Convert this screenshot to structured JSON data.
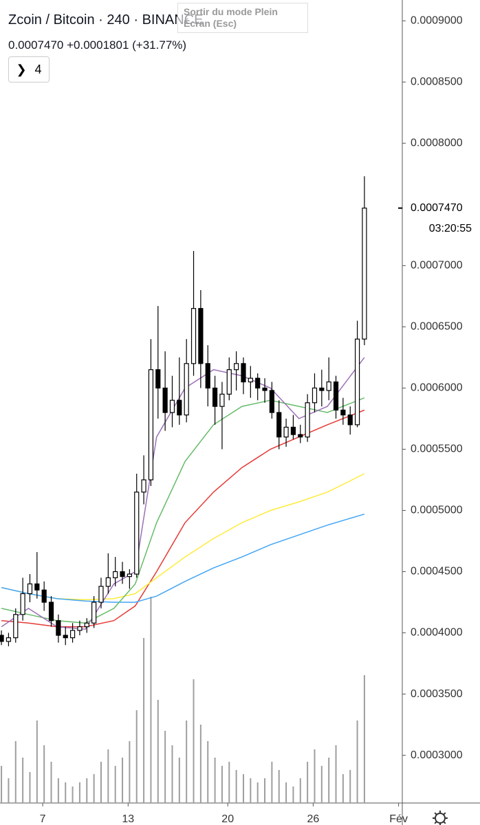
{
  "header": {
    "symbol": "Zcoin / Bitcoin",
    "separator": "·",
    "interval": "240",
    "exchange": "BINANCE",
    "last": "0.0007470",
    "change": "+0.0001801",
    "change_pct": "(+31.77%)",
    "indicators_count": "4",
    "tooltip": "Sortir du mode Plein Écran (Esc)"
  },
  "chart_data": {
    "type": "candlestick",
    "x": [
      4.1,
      4.6,
      5.1,
      5.6,
      6.1,
      6.6,
      7.1,
      7.6,
      8.1,
      8.6,
      9.1,
      9.6,
      10.1,
      10.6,
      11.1,
      11.6,
      12.1,
      12.6,
      13.1,
      13.6,
      14.1,
      14.6,
      15.1,
      15.6,
      16.1,
      16.6,
      17.1,
      17.6,
      18.1,
      18.6,
      19.1,
      19.6,
      20.1,
      20.6,
      21.1,
      21.6,
      22.1,
      22.6,
      23.1,
      23.6,
      24.1,
      24.6,
      25.1,
      25.6,
      26.1,
      26.6,
      27.1,
      27.6,
      28.1,
      28.6,
      29.1,
      29.6
    ],
    "open": [
      0.000398,
      0.000393,
      0.000396,
      0.000415,
      0.000432,
      0.00044,
      0.000435,
      0.000425,
      0.00041,
      0.000398,
      0.000396,
      0.000402,
      0.000405,
      0.000408,
      0.000425,
      0.000438,
      0.000445,
      0.00045,
      0.000446,
      0.000448,
      0.000515,
      0.000525,
      0.000615,
      0.0006,
      0.00058,
      0.00059,
      0.000578,
      0.00062,
      0.000665,
      0.00062,
      0.0006,
      0.000585,
      0.000595,
      0.000615,
      0.00062,
      0.000605,
      0.000608,
      0.0006,
      0.000598,
      0.00058,
      0.00056,
      0.000568,
      0.000562,
      0.00056,
      0.000588,
      0.0006,
      0.000598,
      0.000605,
      0.000582,
      0.000578,
      0.00057,
      0.00064
    ],
    "high": [
      0.000402,
      0.0004,
      0.00042,
      0.000445,
      0.000448,
      0.000466,
      0.000442,
      0.00043,
      0.000415,
      0.000405,
      0.000408,
      0.00041,
      0.000412,
      0.00043,
      0.000445,
      0.000465,
      0.000462,
      0.000458,
      0.000452,
      0.00053,
      0.000545,
      0.00064,
      0.000667,
      0.00063,
      0.00061,
      0.000625,
      0.00064,
      0.000712,
      0.00068,
      0.000635,
      0.00061,
      0.000605,
      0.000625,
      0.00063,
      0.000625,
      0.000618,
      0.000612,
      0.000608,
      0.000605,
      0.00059,
      0.000575,
      0.000578,
      0.00057,
      0.000595,
      0.000612,
      0.000615,
      0.000625,
      0.00061,
      0.000592,
      0.000585,
      0.000655,
      0.000773
    ],
    "low": [
      0.00039,
      0.000389,
      0.000392,
      0.00041,
      0.000425,
      0.000428,
      0.000418,
      0.000405,
      0.000392,
      0.00039,
      0.000392,
      0.000398,
      0.0004,
      0.000404,
      0.00042,
      0.000432,
      0.000438,
      0.00044,
      0.000436,
      0.000445,
      0.000505,
      0.00052,
      0.000575,
      0.000565,
      0.000568,
      0.00057,
      0.000572,
      0.00061,
      0.0006,
      0.000585,
      0.00057,
      0.00055,
      0.00059,
      0.000598,
      0.000595,
      0.000592,
      0.00059,
      0.000588,
      0.000575,
      0.00055,
      0.000552,
      0.000558,
      0.000555,
      0.000556,
      0.00058,
      0.000585,
      0.00059,
      0.000575,
      0.00057,
      0.000562,
      0.000568,
      0.000635
    ],
    "close": [
      0.000393,
      0.000396,
      0.000415,
      0.000432,
      0.00044,
      0.000435,
      0.000425,
      0.00041,
      0.000398,
      0.000396,
      0.000402,
      0.000405,
      0.000408,
      0.000425,
      0.000438,
      0.000445,
      0.00045,
      0.000446,
      0.000448,
      0.000515,
      0.000525,
      0.000615,
      0.0006,
      0.00058,
      0.00059,
      0.000578,
      0.00062,
      0.000665,
      0.00062,
      0.0006,
      0.000585,
      0.000595,
      0.000615,
      0.00062,
      0.000605,
      0.000608,
      0.0006,
      0.000598,
      0.00058,
      0.00056,
      0.000568,
      0.000562,
      0.00056,
      0.000588,
      0.0006,
      0.000598,
      0.000605,
      0.000582,
      0.000578,
      0.00057,
      0.00064,
      0.000747
    ],
    "volume": {
      "color": "#9e9e9e",
      "ylim": [
        0,
        100
      ],
      "values": [
        18,
        12,
        30,
        22,
        15,
        40,
        28,
        20,
        12,
        10,
        8,
        10,
        12,
        14,
        20,
        26,
        18,
        22,
        30,
        45,
        80,
        100,
        50,
        35,
        28,
        22,
        40,
        60,
        38,
        30,
        22,
        18,
        20,
        16,
        14,
        12,
        10,
        12,
        20,
        16,
        10,
        8,
        12,
        20,
        26,
        18,
        22,
        28,
        14,
        16,
        40,
        62
      ]
    },
    "ma_x": [
      4.1,
      6,
      8,
      10,
      12,
      13.5,
      15,
      17,
      19,
      21,
      23,
      25,
      27,
      29.6
    ],
    "moving_averages": [
      {
        "color": "#e53935",
        "values": [
          0.00041,
          0.000408,
          0.000405,
          0.000405,
          0.00041,
          0.000422,
          0.00045,
          0.00049,
          0.000515,
          0.000535,
          0.00055,
          0.00056,
          0.00057,
          0.000582
        ]
      },
      {
        "color": "#ffeb3b",
        "values": [
          0.000437,
          0.000432,
          0.000428,
          0.000427,
          0.000428,
          0.000432,
          0.000445,
          0.000462,
          0.000477,
          0.00049,
          0.0005,
          0.000507,
          0.000515,
          0.00053
        ]
      },
      {
        "color": "#42a5f5",
        "values": [
          0.000437,
          0.000432,
          0.000428,
          0.000426,
          0.000425,
          0.000425,
          0.00043,
          0.000442,
          0.000453,
          0.000462,
          0.000472,
          0.00048,
          0.000488,
          0.000497
        ]
      },
      {
        "color": "#66bb6a",
        "values": [
          0.00042,
          0.000415,
          0.00041,
          0.000408,
          0.00042,
          0.00044,
          0.00049,
          0.00054,
          0.00057,
          0.000585,
          0.00059,
          0.000585,
          0.00058,
          0.000592
        ]
      },
      {
        "color": "#9c6fb6",
        "values": [
          0.000405,
          0.00042,
          0.000405,
          0.000403,
          0.00044,
          0.00045,
          0.00056,
          0.0006,
          0.000615,
          0.00061,
          0.0006,
          0.000575,
          0.000585,
          0.000625
        ]
      }
    ],
    "xlim": [
      4.0,
      32.26
    ],
    "ylim": [
      0.000261,
      0.000917
    ],
    "yticks": [
      {
        "value": 0.0003,
        "label": "0.0003000"
      },
      {
        "value": 0.00035,
        "label": "0.0003500"
      },
      {
        "value": 0.0004,
        "label": "0.0004000"
      },
      {
        "value": 0.00045,
        "label": "0.0004500"
      },
      {
        "value": 0.0005,
        "label": "0.0005000"
      },
      {
        "value": 0.00055,
        "label": "0.0005500"
      },
      {
        "value": 0.0006,
        "label": "0.0006000"
      },
      {
        "value": 0.00065,
        "label": "0.0006500"
      },
      {
        "value": 0.0007,
        "label": "0.0007000"
      },
      {
        "value": 0.0008,
        "label": "0.0008000"
      },
      {
        "value": 0.00085,
        "label": "0.0008500"
      },
      {
        "value": 0.0009,
        "label": "0.0009000"
      }
    ],
    "xticks": [
      7,
      13,
      20,
      26,
      {
        "value": 32,
        "label": "Fév"
      }
    ],
    "last_price": {
      "value": 0.000747,
      "label": "0.0007470"
    },
    "countdown": "03:20:55"
  }
}
